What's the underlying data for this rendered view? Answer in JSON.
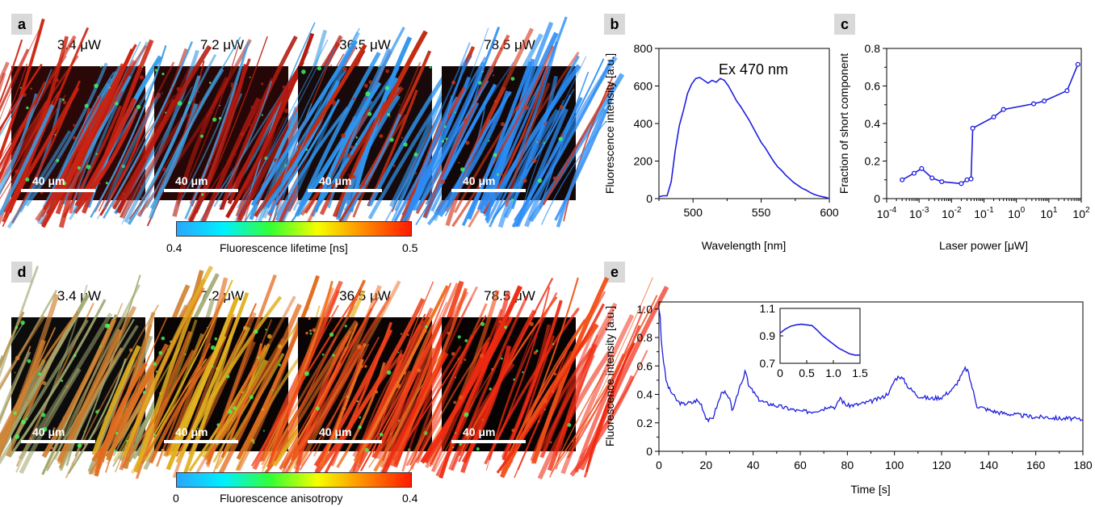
{
  "panel_a": {
    "label": "a",
    "images": [
      {
        "title": "3.4 μW",
        "scale": "40 μm"
      },
      {
        "title": "7.2 μW",
        "scale": "40 μm"
      },
      {
        "title": "36.5 μW",
        "scale": "40 μm"
      },
      {
        "title": "78.5 μW",
        "scale": "40 μm"
      }
    ],
    "colorbar": {
      "min": "0.4",
      "max": "0.5",
      "label": "Fluorescence lifetime [ns]",
      "colors": [
        "#2aa6ff",
        "#00f0ff",
        "#33ff33",
        "#f5ff00",
        "#ff8a00",
        "#ff1a00"
      ]
    }
  },
  "panel_d": {
    "label": "d",
    "images": [
      {
        "title": "3.4 μW",
        "scale": "40 μm"
      },
      {
        "title": "7.2 μW",
        "scale": "40 μm"
      },
      {
        "title": "36.5 μW",
        "scale": "40 μm"
      },
      {
        "title": "78.5 μW",
        "scale": "40 μm"
      }
    ],
    "colorbar": {
      "min": "0",
      "max": "0.4",
      "label": "Fluorescence anisotropy",
      "colors": [
        "#2aa6ff",
        "#00f0ff",
        "#33ff33",
        "#f5ff00",
        "#ff8a00",
        "#ff1a00"
      ]
    }
  },
  "chart_data": [
    {
      "panel": "b",
      "type": "line",
      "xlabel": "Wavelength [nm]",
      "ylabel": "Fluorescence intensity [a.u.]",
      "annotation": "Ex 470 nm",
      "xlim": [
        475,
        600
      ],
      "ylim": [
        0,
        800
      ],
      "xticks": [
        "500",
        "550",
        "600"
      ],
      "yticks": [
        "0",
        "200",
        "400",
        "600",
        "800"
      ],
      "color": "#1f1fdf",
      "x": [
        475,
        478,
        481,
        484,
        487,
        490,
        493,
        496,
        499,
        502,
        505,
        508,
        511,
        514,
        517,
        520,
        523,
        526,
        529,
        532,
        535,
        538,
        541,
        544,
        547,
        550,
        553,
        556,
        559,
        562,
        565,
        568,
        571,
        574,
        577,
        580,
        583,
        586,
        589,
        592,
        595,
        598,
        600
      ],
      "y": [
        10,
        15,
        15,
        90,
        260,
        390,
        470,
        560,
        610,
        640,
        645,
        630,
        615,
        630,
        620,
        640,
        630,
        600,
        560,
        520,
        490,
        455,
        420,
        380,
        340,
        300,
        270,
        235,
        200,
        170,
        150,
        125,
        105,
        85,
        70,
        55,
        45,
        32,
        22,
        15,
        10,
        5,
        0
      ]
    },
    {
      "panel": "c",
      "type": "line",
      "xlabel": "Laser power [μW]",
      "ylabel": "Fraction of short component",
      "xscale": "log",
      "xlim": [
        0.0001,
        100
      ],
      "ylim": [
        0,
        0.8
      ],
      "xticks": [
        {
          "base": "10",
          "exp": "-4"
        },
        {
          "base": "10",
          "exp": "-3"
        },
        {
          "base": "10",
          "exp": "-2"
        },
        {
          "base": "10",
          "exp": "-1"
        },
        {
          "base": "10",
          "exp": "0"
        },
        {
          "base": "10",
          "exp": "1"
        },
        {
          "base": "10",
          "exp": "2"
        }
      ],
      "yticks": [
        "0",
        "0.2",
        "0.4",
        "0.6",
        "0.8"
      ],
      "color": "#1f1fdf",
      "x": [
        0.0003,
        0.0007,
        0.0012,
        0.0025,
        0.005,
        0.02,
        0.03,
        0.04,
        0.045,
        0.2,
        0.4,
        3.4,
        7.2,
        36.5,
        78.5
      ],
      "y": [
        0.1,
        0.135,
        0.16,
        0.11,
        0.09,
        0.08,
        0.1,
        0.105,
        0.375,
        0.435,
        0.475,
        0.505,
        0.52,
        0.575,
        0.715
      ]
    },
    {
      "panel": "e",
      "type": "line",
      "xlabel": "Time [s]",
      "ylabel": "Fluorescence intensity [a.u.]",
      "xlim": [
        0,
        180
      ],
      "ylim": [
        0,
        1.05
      ],
      "xticks": [
        "0",
        "20",
        "40",
        "60",
        "80",
        "100",
        "120",
        "140",
        "160",
        "180"
      ],
      "yticks": [
        "0",
        "0.2",
        "0.4",
        "0.6",
        "0.8",
        "1.0"
      ],
      "color": "#1f1fdf",
      "x": [
        0,
        0.5,
        1,
        1.5,
        2,
        3,
        4,
        5,
        6,
        7,
        8,
        10,
        12,
        14,
        16,
        18,
        19,
        20,
        21,
        22,
        23,
        24,
        26,
        27,
        28,
        30,
        31,
        32,
        34,
        35,
        36,
        36.5,
        37,
        38,
        40,
        42,
        45,
        48,
        50,
        55,
        60,
        65,
        70,
        72,
        75,
        76,
        77,
        78,
        80,
        85,
        90,
        95,
        98,
        100,
        102,
        104,
        106,
        110,
        115,
        120,
        125,
        128,
        130,
        131,
        133,
        135,
        140,
        145,
        150,
        155,
        160,
        165,
        170,
        175,
        180
      ],
      "y": [
        1.0,
        0.95,
        0.78,
        0.7,
        0.63,
        0.5,
        0.45,
        0.42,
        0.4,
        0.37,
        0.35,
        0.33,
        0.34,
        0.34,
        0.36,
        0.33,
        0.28,
        0.24,
        0.22,
        0.22,
        0.24,
        0.29,
        0.38,
        0.43,
        0.41,
        0.36,
        0.3,
        0.31,
        0.44,
        0.49,
        0.52,
        0.58,
        0.55,
        0.46,
        0.42,
        0.37,
        0.34,
        0.33,
        0.32,
        0.3,
        0.28,
        0.28,
        0.3,
        0.32,
        0.31,
        0.34,
        0.38,
        0.35,
        0.32,
        0.33,
        0.35,
        0.38,
        0.42,
        0.5,
        0.53,
        0.5,
        0.45,
        0.39,
        0.37,
        0.38,
        0.44,
        0.52,
        0.58,
        0.57,
        0.45,
        0.32,
        0.29,
        0.27,
        0.26,
        0.25,
        0.24,
        0.24,
        0.23,
        0.23,
        0.22
      ],
      "inset": {
        "xlim": [
          0,
          1.5
        ],
        "ylim": [
          0.7,
          1.1
        ],
        "xticks": [
          "0",
          "0.5",
          "1.0",
          "1.5"
        ],
        "yticks": [
          "0.7",
          "0.9",
          "1.1"
        ],
        "x": [
          0,
          0.1,
          0.2,
          0.3,
          0.4,
          0.5,
          0.6,
          0.7,
          0.8,
          0.9,
          1.0,
          1.1,
          1.2,
          1.3,
          1.4,
          1.5
        ],
        "y": [
          0.92,
          0.95,
          0.97,
          0.98,
          0.985,
          0.98,
          0.975,
          0.94,
          0.9,
          0.87,
          0.84,
          0.81,
          0.79,
          0.77,
          0.76,
          0.76
        ]
      }
    }
  ]
}
